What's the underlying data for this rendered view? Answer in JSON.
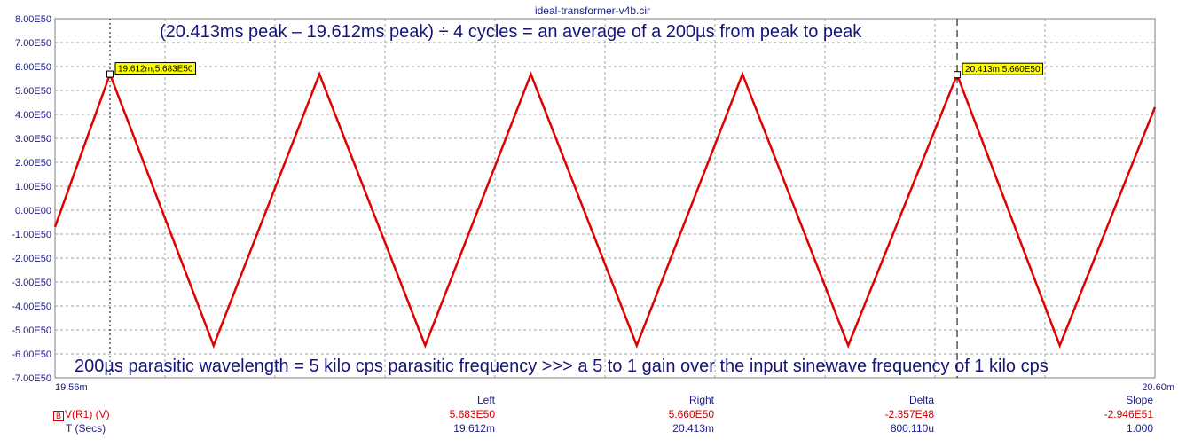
{
  "window_title": "ideal-transformer-v4b.cir",
  "chart_data": {
    "type": "line",
    "title": "ideal-transformer-v4b.cir",
    "xlabel": "T (Secs)",
    "ylabel": "V(R1) (V)",
    "xlim": [
      0.01956,
      0.0206
    ],
    "ylim": [
      -7e+50,
      8e+50
    ],
    "grid": true,
    "x_tick_labels": {
      "left": "19.56m",
      "right": "20.60m"
    },
    "y_ticks": [
      8e+50,
      7e+50,
      6e+50,
      5e+50,
      4e+50,
      3e+50,
      2e+50,
      1e+50,
      0,
      -1e+50,
      -2e+50,
      -3e+50,
      -4e+50,
      -5e+50,
      -6e+50,
      -7e+50
    ],
    "y_tick_labels": [
      "8.00E50",
      "7.00E50",
      "6.00E50",
      "5.00E50",
      "4.00E50",
      "3.00E50",
      "2.00E50",
      "1.00E50",
      "0.00E00",
      "-1.00E50",
      "-2.00E50",
      "-3.00E50",
      "-4.00E50",
      "-5.00E50",
      "-6.00E50",
      "-7.00E50"
    ],
    "series": [
      {
        "name": "V(R1) (V)",
        "color": "#e00000",
        "x": [
          0.01956,
          0.019612,
          0.01971,
          0.01981,
          0.01991,
          0.02001,
          0.02011,
          0.02021,
          0.02031,
          0.020413,
          0.02051,
          0.0206
        ],
        "y": [
          -7e+49,
          5.683e+50,
          -5.65e+50,
          5.68e+50,
          -5.65e+50,
          5.68e+50,
          -5.65e+50,
          5.68e+50,
          -5.65e+50,
          5.66e+50,
          -5.65e+50,
          4.3e+50
        ]
      }
    ],
    "cursors": [
      {
        "x": 0.019612,
        "y": 5.683e+50,
        "label": "19.612m,5.683E50",
        "style": "dotted"
      },
      {
        "x": 0.020413,
        "y": 5.66e+50,
        "label": "20.413m,5.660E50",
        "style": "dashed"
      }
    ],
    "annotations": [
      "(20.413ms peak – 19.612ms peak) ÷ 4 cycles = an average of a 200µs from peak to peak",
      "200µs parasitic wavelength = 5 kilo cps parasitic frequency >>> a 5 to 1 gain over the input sinewave frequency of 1 kilo cps"
    ]
  },
  "readout": {
    "headers": {
      "left": "Left",
      "right": "Right",
      "delta": "Delta",
      "slope": "Slope"
    },
    "rows": [
      {
        "icon": "B",
        "label": "V(R1) (V)",
        "left": "5.683E50",
        "right": "5.660E50",
        "delta": "-2.357E48",
        "slope": "-2.946E51"
      },
      {
        "label": "T (Secs)",
        "left": "19.612m",
        "right": "20.413m",
        "delta": "800.110u",
        "slope": "1.000"
      }
    ]
  },
  "colors": {
    "trace": "#e00000",
    "axis_text": "#1a1a8a",
    "grid": "#808080",
    "cursor_label_bg": "#ffff00"
  }
}
